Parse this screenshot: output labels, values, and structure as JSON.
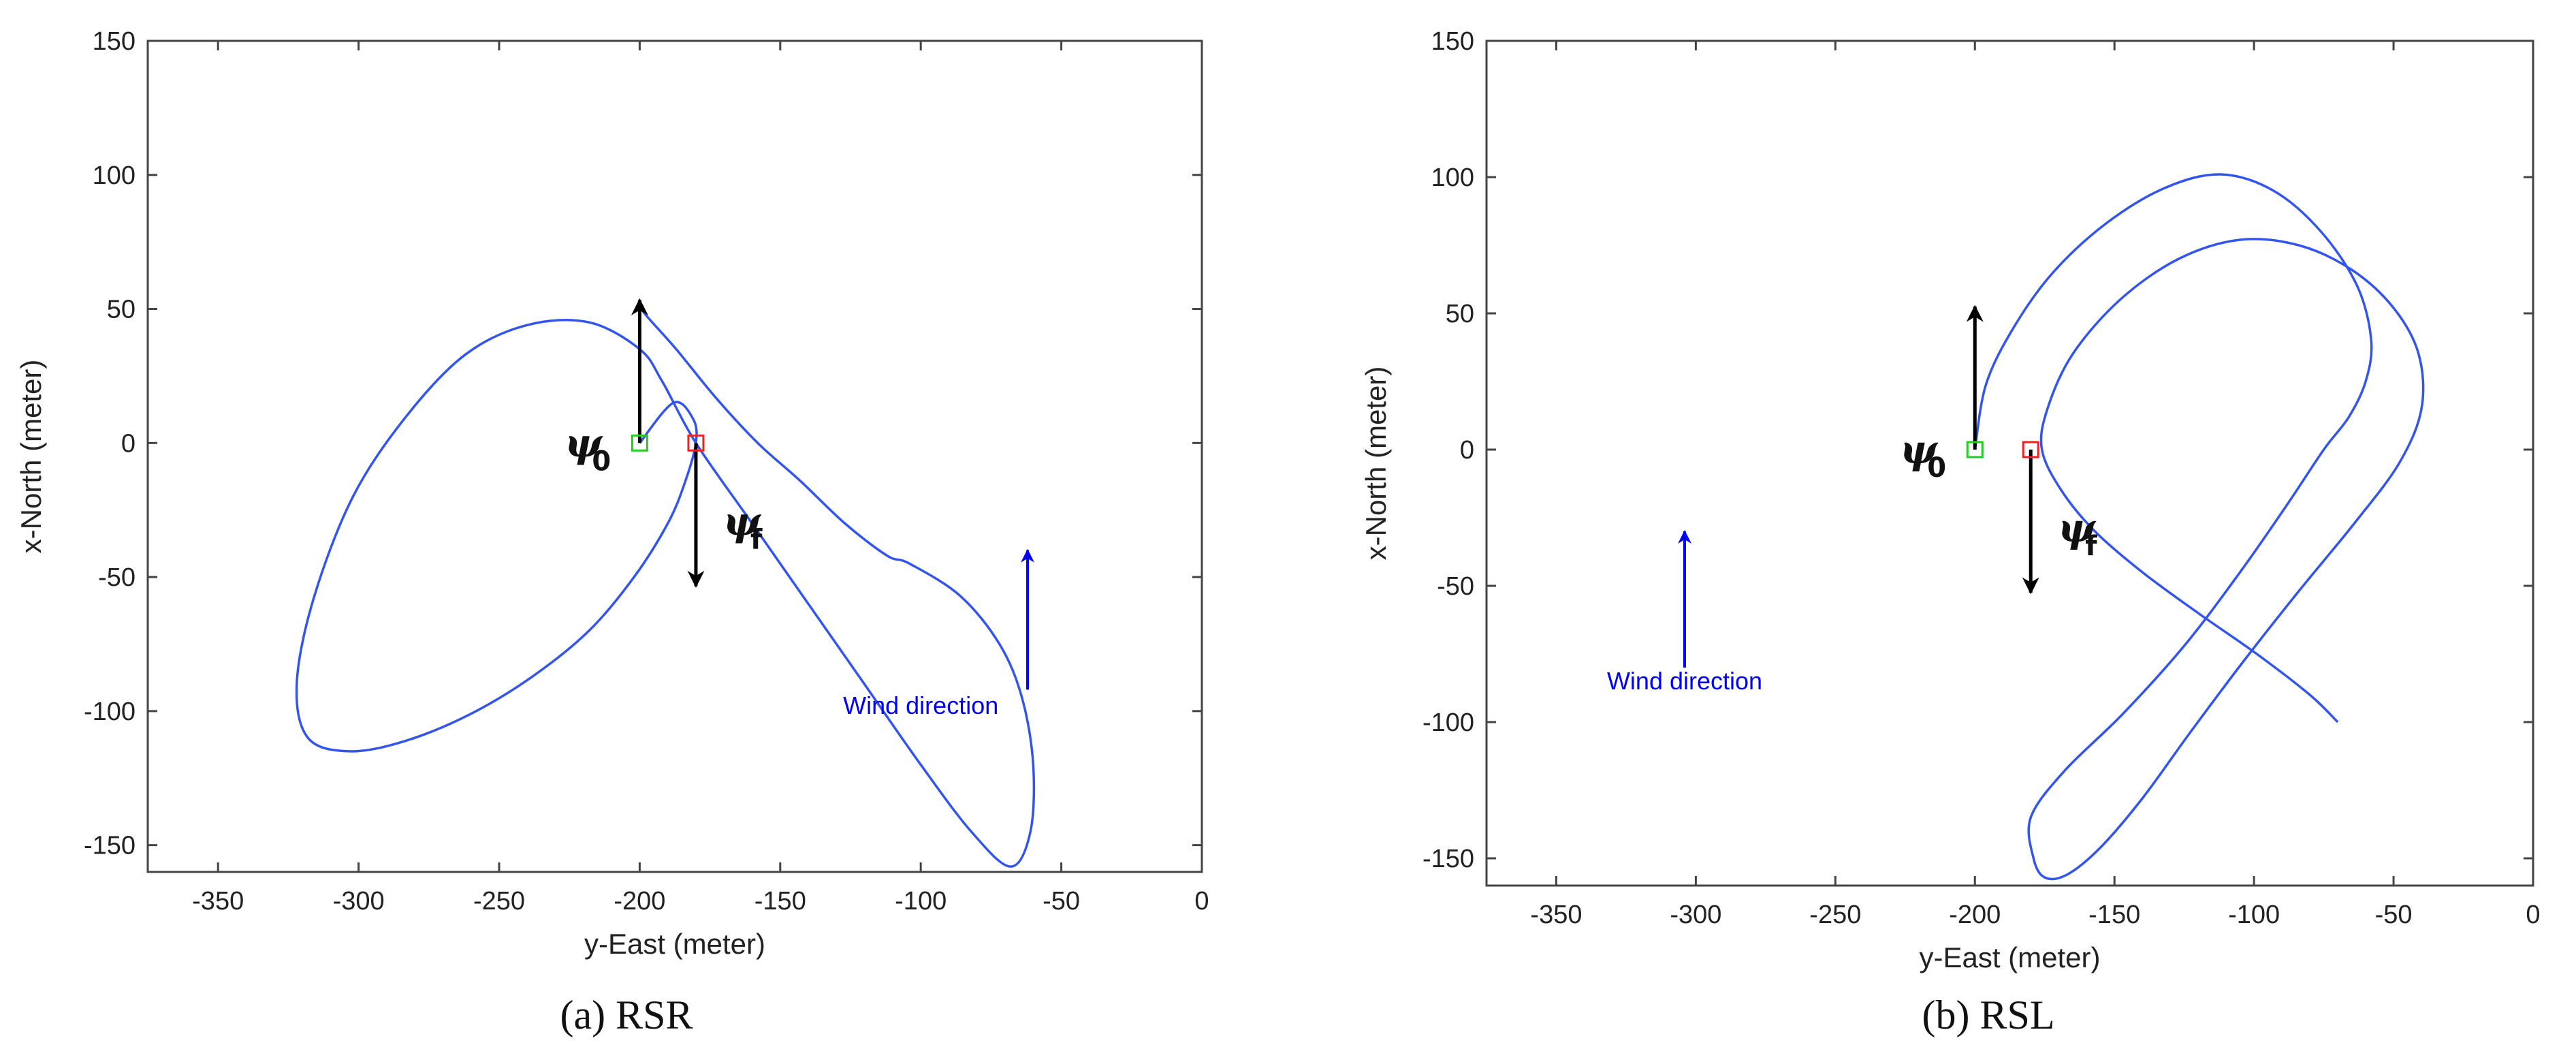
{
  "chart_data": [
    {
      "type": "line",
      "caption": "(a) RSR",
      "xlabel": "y-East (meter)",
      "ylabel": "x-North (meter)",
      "xlim": [
        -375,
        0
      ],
      "ylim": [
        -160,
        150
      ],
      "xticks": [
        -350,
        -300,
        -250,
        -200,
        -150,
        -100,
        -50,
        0
      ],
      "yticks": [
        150,
        100,
        50,
        0,
        -50,
        -100,
        -150
      ],
      "grid": false,
      "path_color": "#3355ee",
      "start": {
        "x": -200,
        "y": 0,
        "heading_label": "ψ",
        "heading_sub": "0",
        "heading_dir": "up"
      },
      "end": {
        "x": -180,
        "y": 0,
        "heading_label": "ψ",
        "heading_sub": "f",
        "heading_dir": "down"
      },
      "wind": {
        "label": "Wind direction",
        "x": -62,
        "y_tail": -92,
        "y_head": -40,
        "label_x": -100,
        "label_y": -101
      },
      "series": [
        {
          "x": [
            -200,
            -188,
            -181,
            -180,
            -184,
            -190,
            -202,
            -218,
            -238,
            -260,
            -283,
            -303,
            -318,
            -322,
            -316,
            -302,
            -283,
            -262,
            -240,
            -218,
            -200,
            -192,
            -180,
            -160,
            -140,
            -120,
            -100,
            -82,
            -68,
            -61,
            -60,
            -64,
            -72,
            -86,
            -104,
            -112,
            -127,
            -143,
            -158,
            -173,
            -187,
            -198,
            -200
          ],
          "y": [
            0,
            15,
            9,
            0,
            -15,
            -30,
            -50,
            -70,
            -87,
            -101,
            -111,
            -115,
            -110,
            -90,
            -58,
            -20,
            10,
            33,
            44,
            45,
            35,
            23,
            0,
            -30,
            -60,
            -90,
            -120,
            -145,
            -158,
            -145,
            -120,
            -95,
            -75,
            -57,
            -45,
            -42,
            -30,
            -14,
            0,
            17,
            35,
            48,
            52
          ]
        }
      ]
    },
    {
      "type": "line",
      "caption": "(b) RSL",
      "xlabel": "y-East (meter)",
      "ylabel": "x-North (meter)",
      "xlim": [
        -375,
        0
      ],
      "ylim": [
        -160,
        150
      ],
      "xticks": [
        -350,
        -300,
        -250,
        -200,
        -150,
        -100,
        -50,
        0
      ],
      "yticks": [
        150,
        100,
        50,
        0,
        -50,
        -100,
        -150
      ],
      "grid": false,
      "path_color": "#3355ee",
      "start": {
        "x": -200,
        "y": 0,
        "heading_label": "ψ",
        "heading_sub": "0",
        "heading_dir": "up"
      },
      "end": {
        "x": -180,
        "y": 0,
        "heading_label": "ψ",
        "heading_sub": "f",
        "heading_dir": "down"
      },
      "wind": {
        "label": "Wind direction",
        "x": -304,
        "y_tail": -80,
        "y_head": -30,
        "label_x": -304,
        "label_y": -88
      },
      "series": [
        {
          "x": [
            -200,
            -196,
            -186,
            -172,
            -153,
            -132,
            -112,
            -93,
            -76,
            -63,
            -58,
            -60,
            -66,
            -75,
            -88,
            -105,
            -125,
            -147,
            -168,
            -180,
            -179,
            -175,
            -167,
            -155,
            -140,
            -123,
            -104,
            -84,
            -64,
            -48,
            -40,
            -41,
            -50,
            -65,
            -84,
            -105,
            -127,
            -148,
            -165,
            -174,
            -176,
            -169,
            -157,
            -140,
            -120,
            -99,
            -80,
            -70
          ],
          "y": [
            0,
            24,
            45,
            65,
            83,
            96,
            101,
            95,
            80,
            60,
            40,
            25,
            12,
            0,
            -20,
            -45,
            -72,
            -97,
            -118,
            -135,
            -150,
            -157,
            -156,
            -146,
            -128,
            -104,
            -78,
            -52,
            -27,
            -5,
            15,
            35,
            52,
            66,
            75,
            77,
            70,
            55,
            35,
            15,
            0,
            -15,
            -30,
            -45,
            -60,
            -75,
            -90,
            -100
          ]
        }
      ]
    }
  ]
}
